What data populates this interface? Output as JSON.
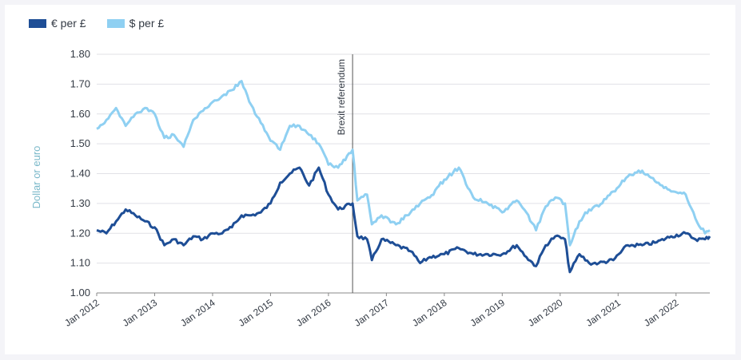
{
  "chart_data": {
    "type": "line",
    "title": "",
    "ylabel": "Dollar or euro",
    "xlabel": "",
    "ylim": [
      1.0,
      1.8
    ],
    "yticks": [
      "1.00",
      "1.10",
      "1.20",
      "1.30",
      "1.40",
      "1.50",
      "1.60",
      "1.70",
      "1.80"
    ],
    "xticks": [
      "Jan 2012",
      "Jan 2013",
      "Jan 2014",
      "Jan 2015",
      "Jan 2016",
      "Jan 2017",
      "Jan 2018",
      "Jan 2019",
      "Jan 2020",
      "Jan 2021",
      "Jan 2022"
    ],
    "xrange": [
      "2012-01",
      "2022-08"
    ],
    "grid": "horizontal",
    "legend_position": "top-left",
    "annotation": {
      "label": "Brexit referendum",
      "date": "2016-06"
    },
    "series": [
      {
        "name": "€ per £",
        "color": "#1e4e96",
        "points": [
          [
            "2012-01",
            1.21
          ],
          [
            "2012-03",
            1.2
          ],
          [
            "2012-05",
            1.24
          ],
          [
            "2012-07",
            1.28
          ],
          [
            "2012-09",
            1.26
          ],
          [
            "2012-11",
            1.24
          ],
          [
            "2013-01",
            1.22
          ],
          [
            "2013-03",
            1.16
          ],
          [
            "2013-05",
            1.18
          ],
          [
            "2013-07",
            1.16
          ],
          [
            "2013-09",
            1.19
          ],
          [
            "2013-11",
            1.18
          ],
          [
            "2014-01",
            1.2
          ],
          [
            "2014-03",
            1.2
          ],
          [
            "2014-05",
            1.22
          ],
          [
            "2014-07",
            1.26
          ],
          [
            "2014-09",
            1.26
          ],
          [
            "2014-11",
            1.27
          ],
          [
            "2015-01",
            1.3
          ],
          [
            "2015-03",
            1.37
          ],
          [
            "2015-05",
            1.4
          ],
          [
            "2015-07",
            1.42
          ],
          [
            "2015-09",
            1.36
          ],
          [
            "2015-11",
            1.42
          ],
          [
            "2016-01",
            1.33
          ],
          [
            "2016-03",
            1.28
          ],
          [
            "2016-06",
            1.3
          ],
          [
            "2016-07",
            1.19
          ],
          [
            "2016-09",
            1.18
          ],
          [
            "2016-10",
            1.11
          ],
          [
            "2016-12",
            1.18
          ],
          [
            "2017-03",
            1.16
          ],
          [
            "2017-06",
            1.14
          ],
          [
            "2017-08",
            1.1
          ],
          [
            "2017-10",
            1.12
          ],
          [
            "2018-01",
            1.13
          ],
          [
            "2018-04",
            1.15
          ],
          [
            "2018-07",
            1.13
          ],
          [
            "2018-10",
            1.13
          ],
          [
            "2019-01",
            1.13
          ],
          [
            "2019-04",
            1.16
          ],
          [
            "2019-06",
            1.12
          ],
          [
            "2019-08",
            1.09
          ],
          [
            "2019-10",
            1.16
          ],
          [
            "2019-12",
            1.19
          ],
          [
            "2020-02",
            1.18
          ],
          [
            "2020-03",
            1.07
          ],
          [
            "2020-05",
            1.13
          ],
          [
            "2020-07",
            1.1
          ],
          [
            "2020-09",
            1.1
          ],
          [
            "2020-12",
            1.11
          ],
          [
            "2021-03",
            1.16
          ],
          [
            "2021-06",
            1.16
          ],
          [
            "2021-09",
            1.17
          ],
          [
            "2021-12",
            1.19
          ],
          [
            "2022-03",
            1.2
          ],
          [
            "2022-05",
            1.18
          ],
          [
            "2022-07",
            1.18
          ],
          [
            "2022-08",
            1.19
          ]
        ]
      },
      {
        "name": "$ per £",
        "color": "#8fd0f2",
        "points": [
          [
            "2012-01",
            1.55
          ],
          [
            "2012-03",
            1.58
          ],
          [
            "2012-05",
            1.62
          ],
          [
            "2012-07",
            1.56
          ],
          [
            "2012-09",
            1.6
          ],
          [
            "2012-11",
            1.62
          ],
          [
            "2013-01",
            1.6
          ],
          [
            "2013-03",
            1.52
          ],
          [
            "2013-05",
            1.53
          ],
          [
            "2013-07",
            1.49
          ],
          [
            "2013-09",
            1.58
          ],
          [
            "2013-11",
            1.61
          ],
          [
            "2014-01",
            1.64
          ],
          [
            "2014-03",
            1.66
          ],
          [
            "2014-05",
            1.68
          ],
          [
            "2014-07",
            1.71
          ],
          [
            "2014-09",
            1.63
          ],
          [
            "2014-11",
            1.57
          ],
          [
            "2015-01",
            1.51
          ],
          [
            "2015-03",
            1.48
          ],
          [
            "2015-05",
            1.56
          ],
          [
            "2015-07",
            1.56
          ],
          [
            "2015-09",
            1.53
          ],
          [
            "2015-11",
            1.5
          ],
          [
            "2016-01",
            1.43
          ],
          [
            "2016-03",
            1.42
          ],
          [
            "2016-06",
            1.48
          ],
          [
            "2016-07",
            1.31
          ],
          [
            "2016-09",
            1.33
          ],
          [
            "2016-10",
            1.23
          ],
          [
            "2016-12",
            1.26
          ],
          [
            "2017-03",
            1.23
          ],
          [
            "2017-06",
            1.27
          ],
          [
            "2017-08",
            1.3
          ],
          [
            "2017-10",
            1.32
          ],
          [
            "2018-01",
            1.38
          ],
          [
            "2018-04",
            1.42
          ],
          [
            "2018-07",
            1.32
          ],
          [
            "2018-10",
            1.3
          ],
          [
            "2019-01",
            1.27
          ],
          [
            "2019-04",
            1.31
          ],
          [
            "2019-06",
            1.27
          ],
          [
            "2019-08",
            1.21
          ],
          [
            "2019-10",
            1.29
          ],
          [
            "2019-12",
            1.32
          ],
          [
            "2020-02",
            1.3
          ],
          [
            "2020-03",
            1.16
          ],
          [
            "2020-05",
            1.24
          ],
          [
            "2020-07",
            1.28
          ],
          [
            "2020-09",
            1.29
          ],
          [
            "2020-12",
            1.34
          ],
          [
            "2021-03",
            1.39
          ],
          [
            "2021-06",
            1.41
          ],
          [
            "2021-09",
            1.37
          ],
          [
            "2021-12",
            1.34
          ],
          [
            "2022-03",
            1.33
          ],
          [
            "2022-05",
            1.25
          ],
          [
            "2022-07",
            1.2
          ],
          [
            "2022-08",
            1.21
          ]
        ]
      }
    ]
  }
}
